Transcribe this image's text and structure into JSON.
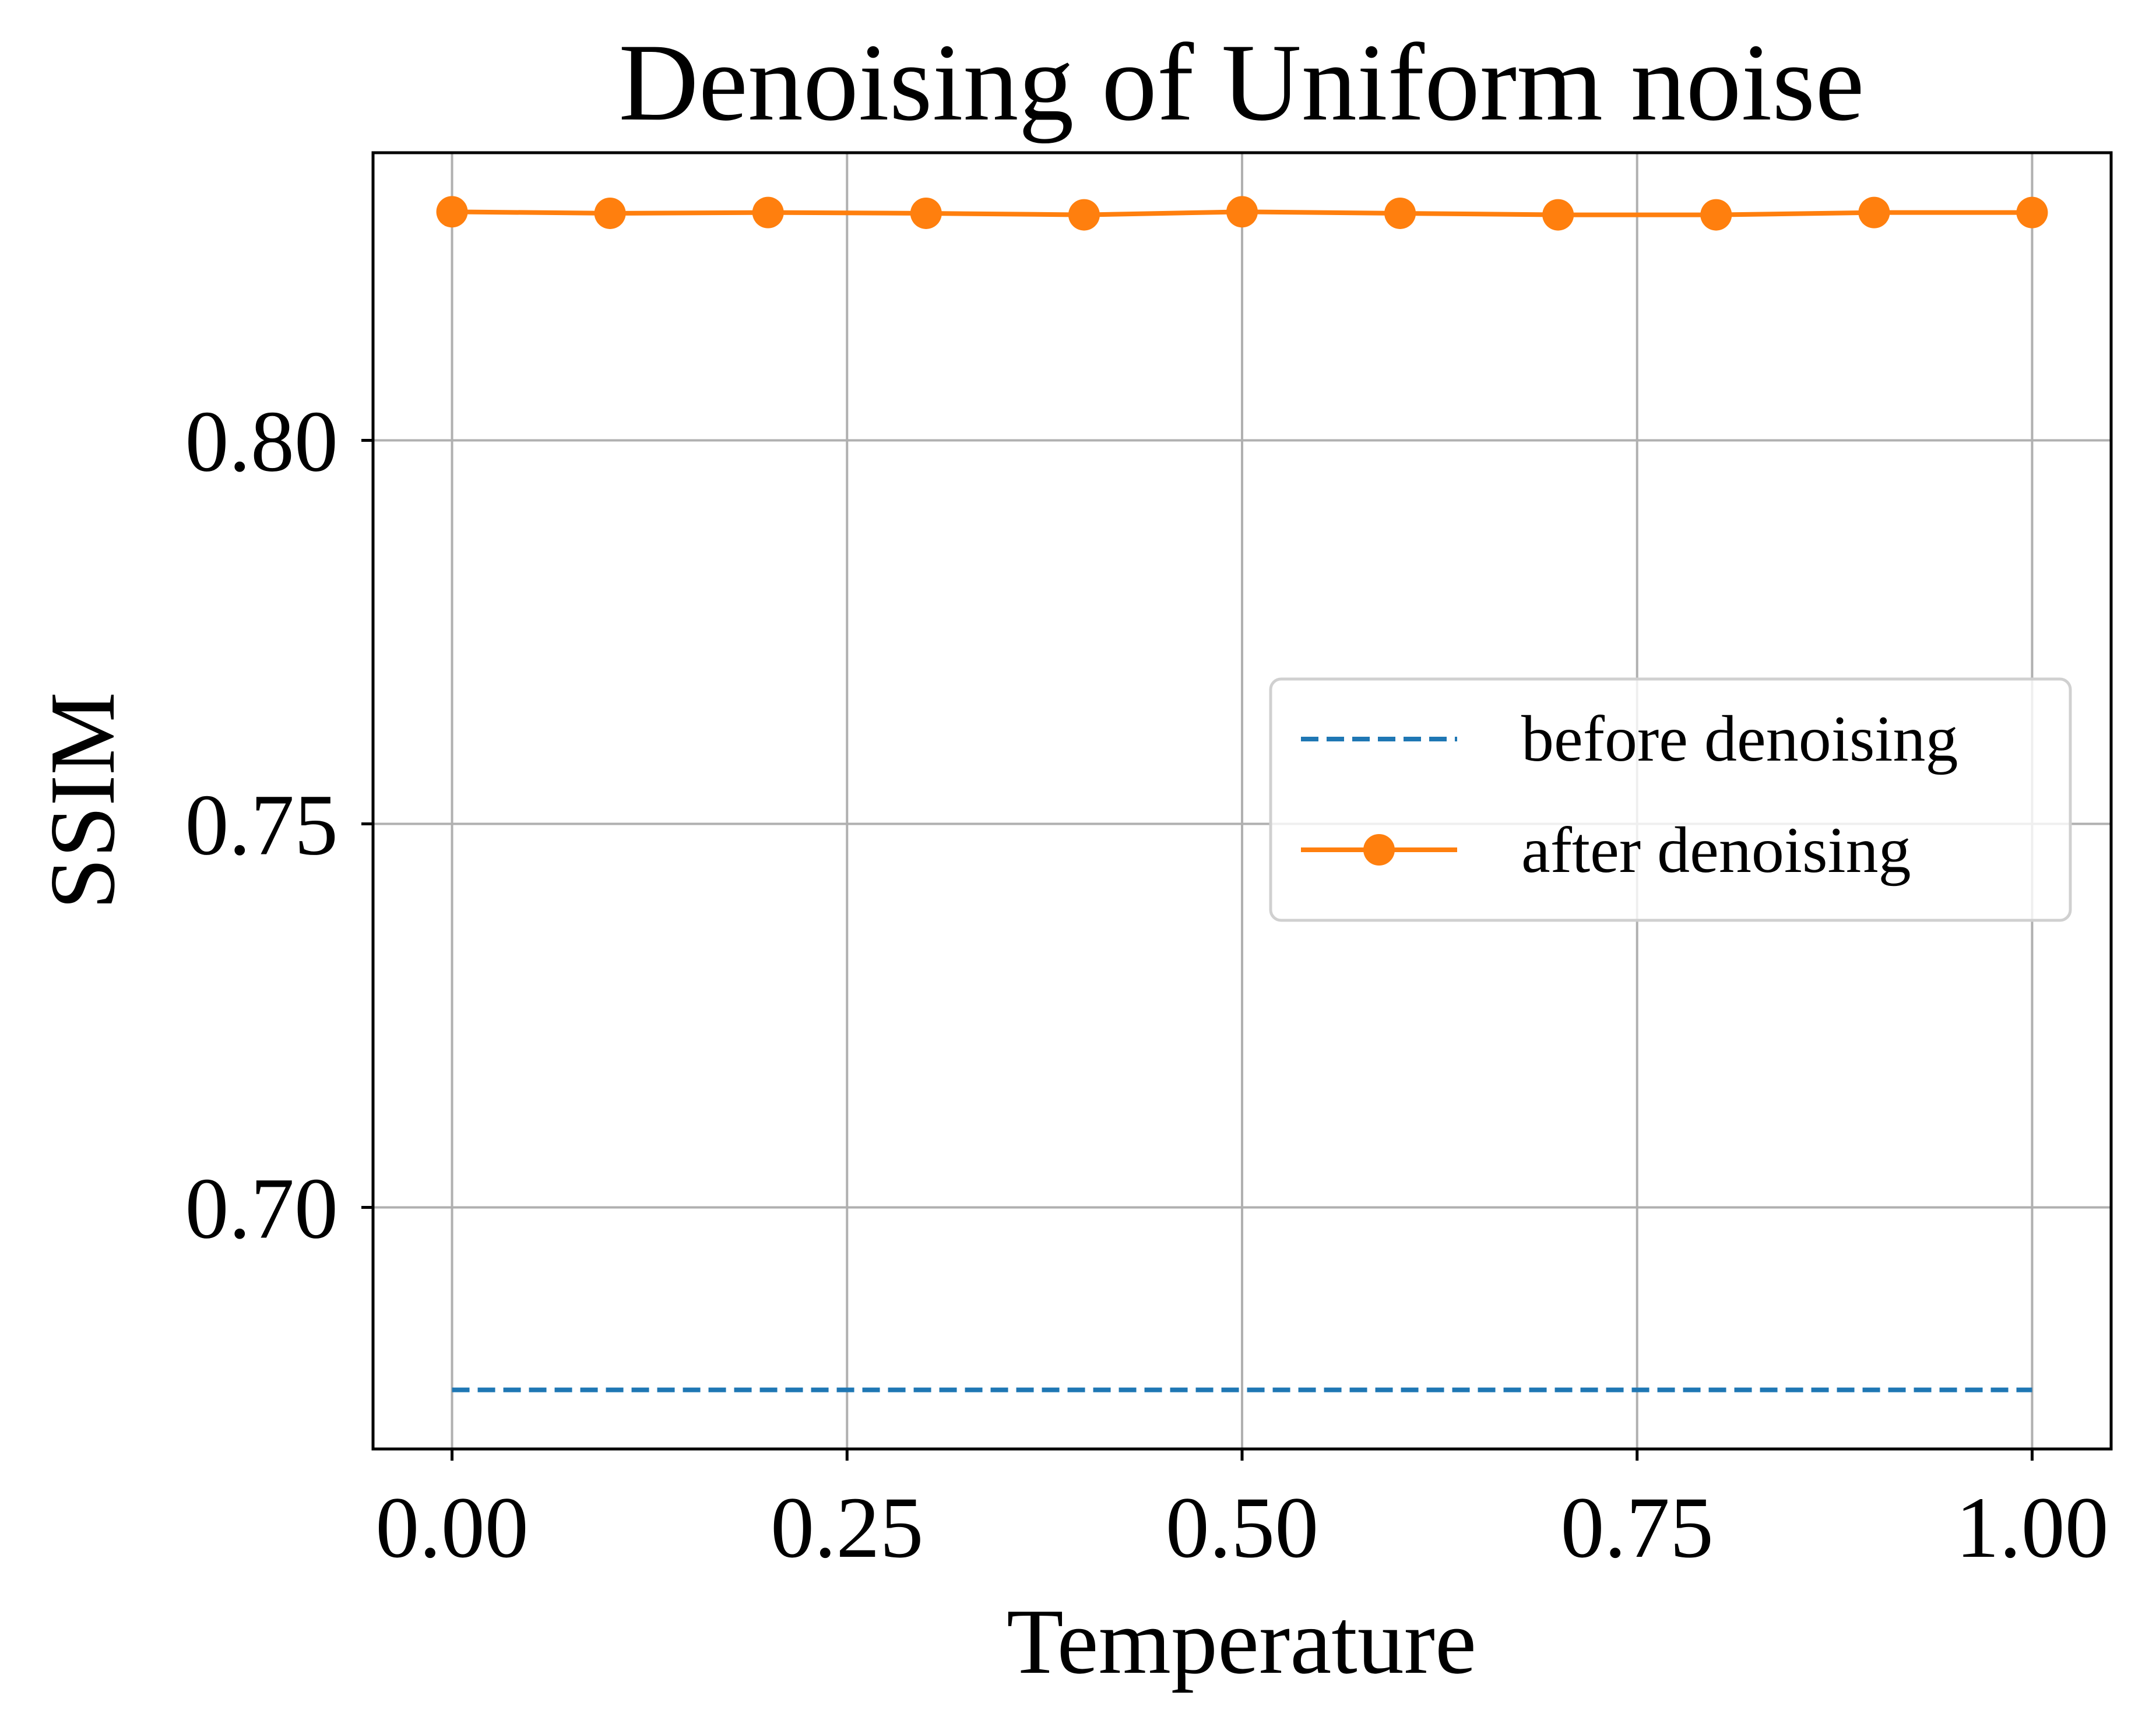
{
  "chart_data": {
    "type": "line",
    "title": "Denoising of Uniform noise",
    "xlabel": "Temperature",
    "ylabel": "SSIM",
    "xlim": [
      -0.05,
      1.05
    ],
    "ylim": [
      0.6685,
      0.8375
    ],
    "xticks": [
      0.0,
      0.25,
      0.5,
      0.75,
      1.0
    ],
    "xtick_labels": [
      "0.00",
      "0.25",
      "0.50",
      "0.75",
      "1.00"
    ],
    "yticks": [
      0.7,
      0.75,
      0.8
    ],
    "ytick_labels": [
      "0.70",
      "0.75",
      "0.80"
    ],
    "grid": true,
    "legend_placement": "center-right",
    "series": [
      {
        "name": "before denoising",
        "style": "dashed",
        "marker": false,
        "color": "#1f77b4",
        "x": [
          0.0,
          1.0
        ],
        "y": [
          0.6762,
          0.6762
        ]
      },
      {
        "name": "after denoising",
        "style": "solid",
        "marker": true,
        "color": "#ff7f0e",
        "x": [
          0.0,
          0.1,
          0.2,
          0.3,
          0.4,
          0.5,
          0.6,
          0.7,
          0.8,
          0.9,
          1.0
        ],
        "y": [
          0.8298,
          0.8296,
          0.8297,
          0.8296,
          0.8294,
          0.8298,
          0.8296,
          0.8294,
          0.8294,
          0.8297,
          0.8297
        ]
      }
    ]
  }
}
